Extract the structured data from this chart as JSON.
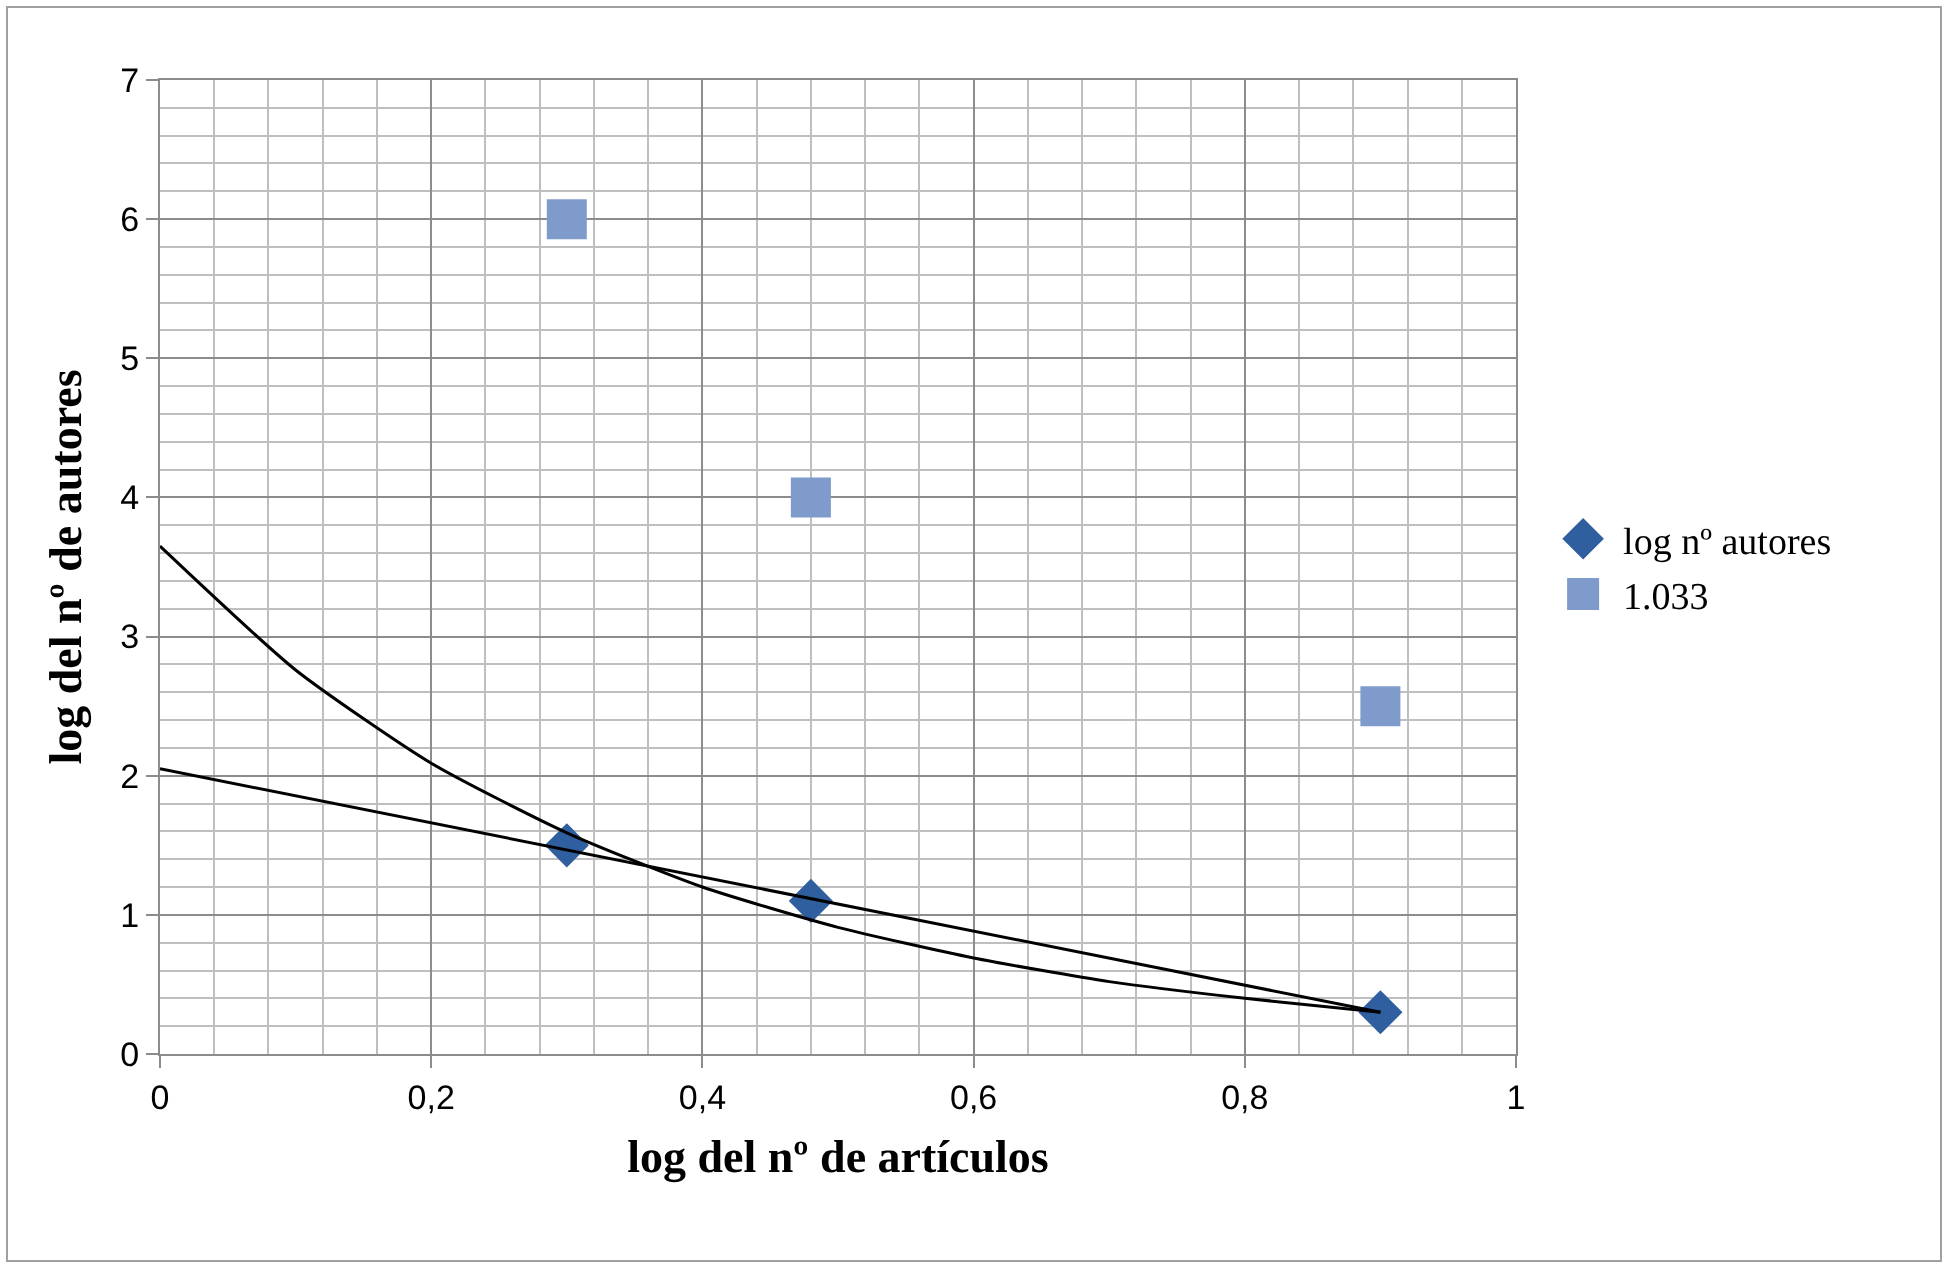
{
  "chart_data": {
    "type": "scatter",
    "xlabel": "log del nº de artículos",
    "ylabel": "log del nº de autores",
    "xlim": [
      0,
      1
    ],
    "ylim": [
      0,
      7
    ],
    "xticks": [
      0,
      {
        "value": 0.2,
        "label": "0,2"
      },
      {
        "value": 0.4,
        "label": "0,4"
      },
      {
        "value": 0.6,
        "label": "0,6"
      },
      {
        "value": 0.8,
        "label": "0,8"
      },
      1
    ],
    "yticks": [
      0,
      1,
      2,
      3,
      4,
      5,
      6,
      7
    ],
    "grid": true,
    "legend": "right",
    "series": [
      {
        "name": "log nº autores",
        "color": "#2f5f9e",
        "marker": "diamond",
        "x": [
          0.3,
          0.48,
          0.9
        ],
        "values": [
          1.5,
          1.1,
          0.3
        ]
      },
      {
        "name": "1.033",
        "color": "#7f9bcc",
        "marker": "square",
        "x": [
          0.3,
          0.48,
          0.9
        ],
        "values": [
          6,
          4,
          2.5
        ]
      },
      {
        "type": "line",
        "color": "#000000",
        "marker": "none",
        "x": [
          0,
          0.9
        ],
        "values": [
          2.05,
          0.3
        ]
      },
      {
        "type": "line",
        "color": "#000000",
        "marker": "none",
        "x": [
          0,
          0.1,
          0.2,
          0.3,
          0.4,
          0.5,
          0.6,
          0.7,
          0.8,
          0.9
        ],
        "values": [
          3.65,
          2.76,
          2.09,
          1.59,
          1.2,
          0.91,
          0.69,
          0.52,
          0.4,
          0.3
        ]
      }
    ]
  }
}
